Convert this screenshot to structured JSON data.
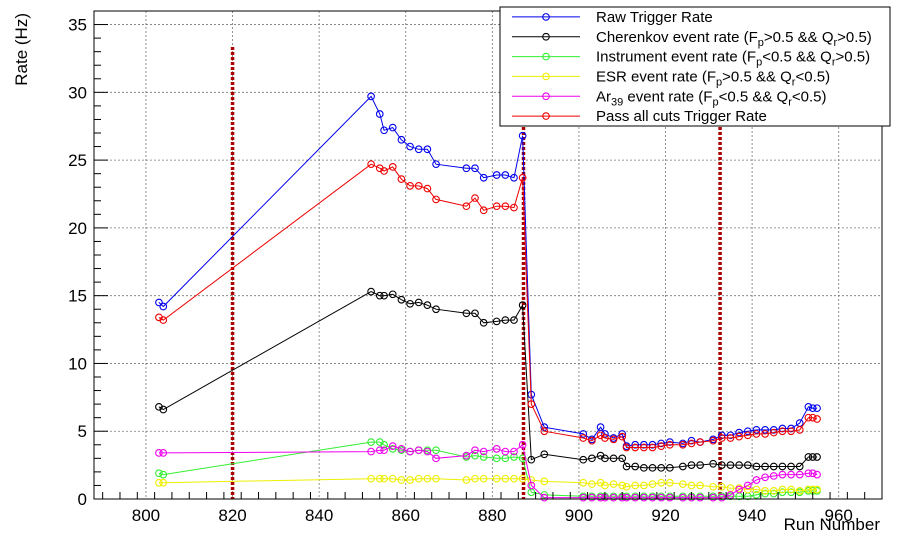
{
  "chart_data": {
    "type": "line",
    "xlabel": "Run Number",
    "ylabel": "Rate (Hz)",
    "xlim": [
      788,
      970
    ],
    "ylim": [
      0,
      36
    ],
    "xticks": [
      800,
      820,
      840,
      860,
      880,
      900,
      920,
      940,
      960
    ],
    "yticks": [
      0,
      5,
      10,
      15,
      20,
      25,
      30,
      35
    ],
    "grid": true,
    "legend_position": "top-right",
    "vertical_markers": [
      {
        "x": 820,
        "color": "#aa0000"
      },
      {
        "x": 887.2,
        "color": "#aa0000"
      },
      {
        "x": 932.6,
        "color": "#aa0000"
      }
    ],
    "legend": [
      {
        "text": "Raw Trigger Rate",
        "parts": [
          [
            "Raw Trigger Rate",
            ""
          ]
        ]
      },
      {
        "text": "Cherenkov event rate (Fp>0.5 && Qr>0.5)",
        "parts": [
          [
            "Cherenkov event rate (F",
            ""
          ],
          [
            "p",
            "sub"
          ],
          [
            ">0.5 && Q",
            ""
          ],
          [
            "r",
            "sub"
          ],
          [
            ">0.5)",
            ""
          ]
        ]
      },
      {
        "text": "Instrument event rate (Fp<0.5 && Qr>0.5)",
        "parts": [
          [
            "Instrument event rate (F",
            ""
          ],
          [
            "p",
            "sub"
          ],
          [
            "<0.5 && Q",
            ""
          ],
          [
            "r",
            "sub"
          ],
          [
            ">0.5)",
            ""
          ]
        ]
      },
      {
        "text": "ESR event rate (Fp>0.5 && Qr<0.5)",
        "parts": [
          [
            "ESR event rate (F",
            ""
          ],
          [
            "p",
            "sub"
          ],
          [
            ">0.5 && Q",
            ""
          ],
          [
            "r",
            "sub"
          ],
          [
            "<0.5)",
            ""
          ]
        ]
      },
      {
        "text": "Ar39 event rate (Fp<0.5 && Qr<0.5)",
        "parts": [
          [
            "Ar",
            ""
          ],
          [
            "39",
            "sub"
          ],
          [
            " event rate (F",
            ""
          ],
          [
            "p",
            "sub"
          ],
          [
            "<0.5 && Q",
            ""
          ],
          [
            "r",
            "sub"
          ],
          [
            "<0.5)",
            ""
          ]
        ]
      },
      {
        "text": "Pass all cuts Trigger Rate",
        "parts": [
          [
            "Pass all cuts Trigger Rate",
            ""
          ]
        ]
      }
    ],
    "x": [
      803,
      804,
      852,
      854,
      855,
      857,
      859,
      861,
      863,
      865,
      867,
      874,
      876,
      878,
      881,
      883,
      885,
      887,
      889,
      892,
      901,
      903,
      905,
      906,
      908,
      910,
      911,
      913,
      915,
      917,
      919,
      921,
      924,
      926,
      928,
      931,
      933,
      935,
      937,
      939,
      941,
      943,
      945,
      947,
      949,
      951,
      953,
      954,
      955
    ],
    "series": [
      {
        "name": "Raw Trigger Rate",
        "color": "#0000ee",
        "values": [
          14.5,
          14.2,
          29.7,
          28.4,
          27.2,
          27.4,
          26.5,
          26.0,
          25.8,
          25.8,
          24.7,
          24.4,
          24.4,
          23.7,
          23.9,
          23.9,
          23.7,
          26.8,
          7.7,
          5.3,
          4.8,
          4.4,
          5.3,
          4.8,
          4.5,
          4.8,
          3.9,
          4.0,
          4.0,
          4.0,
          4.1,
          4.2,
          4.1,
          4.3,
          4.2,
          4.4,
          4.7,
          4.7,
          4.9,
          5.0,
          5.1,
          5.1,
          5.1,
          5.2,
          5.2,
          5.6,
          6.8,
          6.7,
          6.7
        ]
      },
      {
        "name": "Cherenkov event rate (Fp>0.5 && Qr>0.5)",
        "color": "#000000",
        "values": [
          6.8,
          6.6,
          15.3,
          15.0,
          15.0,
          15.1,
          14.7,
          14.4,
          14.5,
          14.3,
          14.0,
          13.7,
          13.7,
          13.0,
          13.1,
          13.2,
          13.2,
          14.3,
          2.9,
          3.3,
          2.9,
          3.0,
          3.2,
          3.0,
          3.0,
          3.0,
          2.4,
          2.4,
          2.3,
          2.3,
          2.3,
          2.3,
          2.4,
          2.5,
          2.5,
          2.6,
          2.5,
          2.5,
          2.5,
          2.5,
          2.4,
          2.4,
          2.4,
          2.4,
          2.4,
          2.4,
          3.1,
          3.1,
          3.1
        ]
      },
      {
        "name": "Instrument event rate (Fp<0.5 && Qr>0.5)",
        "color": "#33ee33",
        "values": [
          1.9,
          1.8,
          4.2,
          4.2,
          4.0,
          3.7,
          3.6,
          3.5,
          3.6,
          3.6,
          3.6,
          3.1,
          3.2,
          3.1,
          3.0,
          3.0,
          3.1,
          3.0,
          0.5,
          0.3,
          0.2,
          0.2,
          0.2,
          0.2,
          0.2,
          0.2,
          0.2,
          0.2,
          0.2,
          0.2,
          0.2,
          0.2,
          0.2,
          0.2,
          0.2,
          0.2,
          0.2,
          0.2,
          0.2,
          0.2,
          0.3,
          0.4,
          0.4,
          0.5,
          0.5,
          0.5,
          0.6,
          0.6,
          0.6
        ]
      },
      {
        "name": "ESR event rate (Fp>0.5 && Qr<0.5)",
        "color": "#eeee00",
        "values": [
          1.2,
          1.2,
          1.5,
          1.5,
          1.5,
          1.5,
          1.4,
          1.4,
          1.5,
          1.5,
          1.5,
          1.4,
          1.5,
          1.5,
          1.5,
          1.5,
          1.5,
          1.5,
          1.4,
          1.3,
          1.2,
          1.1,
          1.2,
          1.0,
          1.1,
          1.0,
          0.9,
          1.0,
          1.0,
          1.1,
          1.2,
          1.2,
          1.1,
          1.0,
          1.0,
          0.9,
          0.9,
          0.8,
          0.8,
          0.7,
          0.7,
          0.6,
          0.6,
          0.7,
          0.7,
          0.6,
          0.7,
          0.7,
          0.7
        ]
      },
      {
        "name": "Ar39 event rate (Fp<0.5 && Qr<0.5)",
        "color": "#ee00ee",
        "values": [
          3.4,
          3.4,
          3.5,
          3.6,
          3.6,
          3.9,
          3.7,
          3.5,
          3.6,
          3.5,
          3.0,
          3.2,
          3.6,
          3.5,
          3.7,
          3.5,
          3.5,
          4.0,
          1.0,
          0.1,
          0.1,
          0.1,
          0.1,
          0.1,
          0.1,
          0.1,
          0.1,
          0.1,
          0.1,
          0.1,
          0.1,
          0.1,
          0.1,
          0.1,
          0.1,
          0.1,
          0.1,
          0.3,
          0.7,
          1.0,
          1.4,
          1.6,
          1.7,
          1.8,
          1.8,
          1.8,
          1.9,
          1.9,
          1.8
        ]
      },
      {
        "name": "Pass all cuts Trigger Rate",
        "color": "#ee0000",
        "values": [
          13.4,
          13.2,
          24.7,
          24.4,
          24.2,
          24.5,
          23.6,
          23.1,
          23.1,
          22.9,
          22.1,
          21.6,
          22.2,
          21.3,
          21.6,
          21.6,
          21.5,
          23.7,
          7.0,
          5.0,
          4.5,
          4.3,
          4.7,
          4.5,
          4.4,
          4.6,
          3.8,
          3.8,
          3.8,
          3.8,
          3.9,
          4.0,
          4.0,
          4.1,
          4.2,
          4.3,
          4.5,
          4.5,
          4.6,
          4.7,
          4.8,
          4.8,
          4.9,
          5.0,
          5.0,
          5.1,
          6.0,
          6.0,
          5.9
        ]
      }
    ]
  }
}
